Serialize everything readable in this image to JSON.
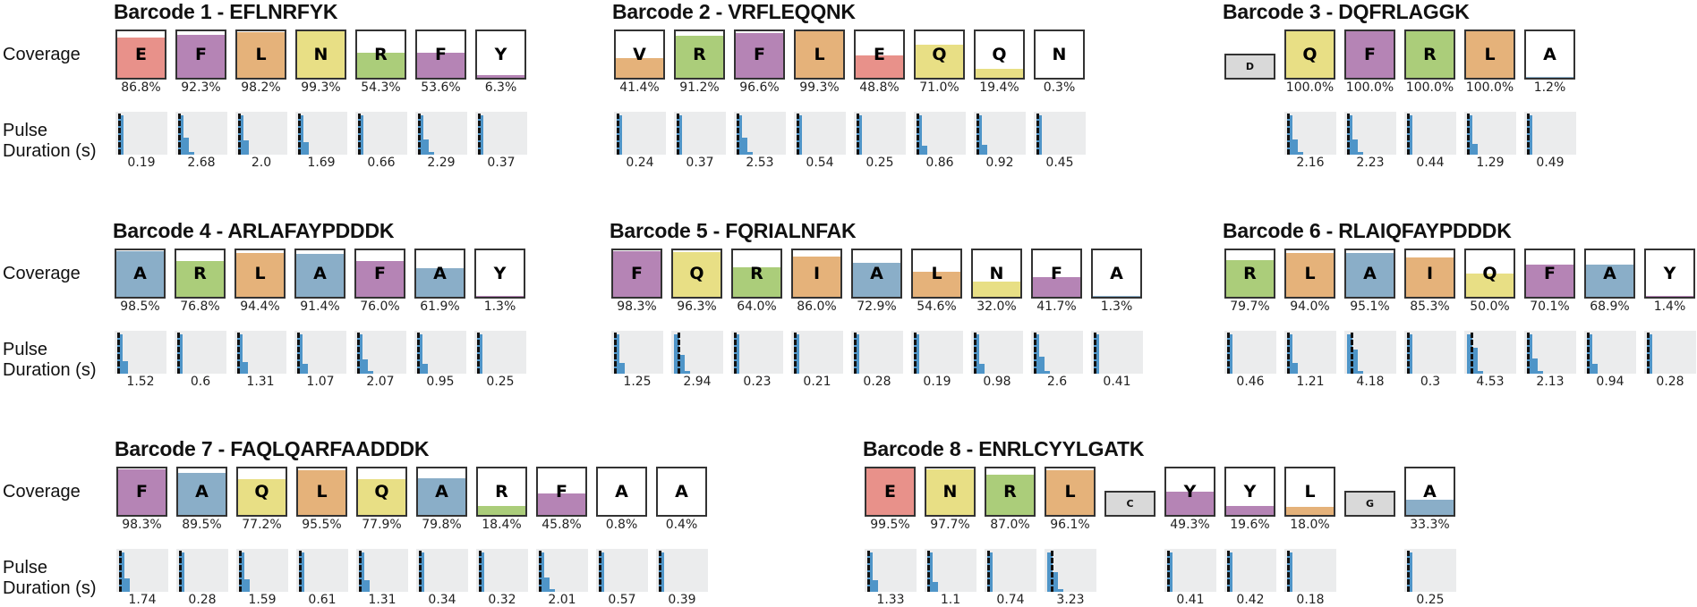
{
  "row_labels": {
    "coverage": "Coverage",
    "pulse_line1": "Pulse",
    "pulse_line2": "Duration (s)"
  },
  "colors": {
    "E": "#e8918a",
    "F": "#b584b5",
    "Y": "#b584b5",
    "L": "#e5b27a",
    "I": "#e5b27a",
    "V": "#e5b27a",
    "N": "#e8df85",
    "Q": "#e8df85",
    "R": "#abcd7a",
    "A": "#8aaec8",
    "missing": "#d9d9d9",
    "histogram": "#4f95c8"
  },
  "chart_data": [
    {
      "type": "bar",
      "title": "Barcode 1 - EFLNRFYK",
      "residues": [
        {
          "letter": "E",
          "coverage": 86.8,
          "coverage_label": "86.8%",
          "pulse": "0.19"
        },
        {
          "letter": "F",
          "coverage": 92.3,
          "coverage_label": "92.3%",
          "pulse": "2.68"
        },
        {
          "letter": "L",
          "coverage": 98.2,
          "coverage_label": "98.2%",
          "pulse": "2.0"
        },
        {
          "letter": "N",
          "coverage": 99.3,
          "coverage_label": "99.3%",
          "pulse": "1.69"
        },
        {
          "letter": "R",
          "coverage": 54.3,
          "coverage_label": "54.3%",
          "pulse": "0.66"
        },
        {
          "letter": "F",
          "coverage": 53.6,
          "coverage_label": "53.6%",
          "pulse": "2.29"
        },
        {
          "letter": "Y",
          "coverage": 6.3,
          "coverage_label": "6.3%",
          "pulse": "0.37"
        }
      ]
    },
    {
      "type": "bar",
      "title": "Barcode 2 - VRFLEQQNK",
      "residues": [
        {
          "letter": "V",
          "coverage": 41.4,
          "coverage_label": "41.4%",
          "pulse": "0.24"
        },
        {
          "letter": "R",
          "coverage": 91.2,
          "coverage_label": "91.2%",
          "pulse": "0.37"
        },
        {
          "letter": "F",
          "coverage": 96.6,
          "coverage_label": "96.6%",
          "pulse": "2.53"
        },
        {
          "letter": "L",
          "coverage": 99.3,
          "coverage_label": "99.3%",
          "pulse": "0.54"
        },
        {
          "letter": "E",
          "coverage": 48.8,
          "coverage_label": "48.8%",
          "pulse": "0.25"
        },
        {
          "letter": "Q",
          "coverage": 71.0,
          "coverage_label": "71.0%",
          "pulse": "0.86"
        },
        {
          "letter": "Q",
          "coverage": 19.4,
          "coverage_label": "19.4%",
          "pulse": "0.92"
        },
        {
          "letter": "N",
          "coverage": 0.3,
          "coverage_label": "0.3%",
          "pulse": "0.45"
        }
      ]
    },
    {
      "type": "bar",
      "title": "Barcode 3 - DQFRLAGGK",
      "residues": [
        {
          "letter": "D",
          "missing": true
        },
        {
          "letter": "Q",
          "coverage": 100.0,
          "coverage_label": "100.0%",
          "pulse": "2.16"
        },
        {
          "letter": "F",
          "coverage": 100.0,
          "coverage_label": "100.0%",
          "pulse": "2.23"
        },
        {
          "letter": "R",
          "coverage": 100.0,
          "coverage_label": "100.0%",
          "pulse": "0.44"
        },
        {
          "letter": "L",
          "coverage": 100.0,
          "coverage_label": "100.0%",
          "pulse": "1.29"
        },
        {
          "letter": "A",
          "coverage": 1.2,
          "coverage_label": "1.2%",
          "pulse": "0.49"
        }
      ]
    },
    {
      "type": "bar",
      "title": "Barcode 4 - ARLAFAYPDDDK",
      "residues": [
        {
          "letter": "A",
          "coverage": 98.5,
          "coverage_label": "98.5%",
          "pulse": "1.52"
        },
        {
          "letter": "R",
          "coverage": 76.8,
          "coverage_label": "76.8%",
          "pulse": "0.6"
        },
        {
          "letter": "L",
          "coverage": 94.4,
          "coverage_label": "94.4%",
          "pulse": "1.31"
        },
        {
          "letter": "A",
          "coverage": 91.4,
          "coverage_label": "91.4%",
          "pulse": "1.07"
        },
        {
          "letter": "F",
          "coverage": 76.0,
          "coverage_label": "76.0%",
          "pulse": "2.07"
        },
        {
          "letter": "A",
          "coverage": 61.9,
          "coverage_label": "61.9%",
          "pulse": "0.95"
        },
        {
          "letter": "Y",
          "coverage": 1.3,
          "coverage_label": "1.3%",
          "pulse": "0.25"
        }
      ]
    },
    {
      "type": "bar",
      "title": "Barcode 5 - FQRIALNFAK",
      "residues": [
        {
          "letter": "F",
          "coverage": 98.3,
          "coverage_label": "98.3%",
          "pulse": "1.25"
        },
        {
          "letter": "Q",
          "coverage": 96.3,
          "coverage_label": "96.3%",
          "pulse": "2.94"
        },
        {
          "letter": "R",
          "coverage": 64.0,
          "coverage_label": "64.0%",
          "pulse": "0.23"
        },
        {
          "letter": "I",
          "coverage": 86.0,
          "coverage_label": "86.0%",
          "pulse": "0.21"
        },
        {
          "letter": "A",
          "coverage": 72.9,
          "coverage_label": "72.9%",
          "pulse": "0.28"
        },
        {
          "letter": "L",
          "coverage": 54.6,
          "coverage_label": "54.6%",
          "pulse": "0.19"
        },
        {
          "letter": "N",
          "coverage": 32.0,
          "coverage_label": "32.0%",
          "pulse": "0.98"
        },
        {
          "letter": "F",
          "coverage": 41.7,
          "coverage_label": "41.7%",
          "pulse": "2.6"
        },
        {
          "letter": "A",
          "coverage": 1.3,
          "coverage_label": "1.3%",
          "pulse": "0.41"
        }
      ]
    },
    {
      "type": "bar",
      "title": "Barcode 6 - RLAIQFAYPDDDK",
      "residues": [
        {
          "letter": "R",
          "coverage": 79.7,
          "coverage_label": "79.7%",
          "pulse": "0.46"
        },
        {
          "letter": "L",
          "coverage": 94.0,
          "coverage_label": "94.0%",
          "pulse": "1.21"
        },
        {
          "letter": "A",
          "coverage": 95.1,
          "coverage_label": "95.1%",
          "pulse": "4.18"
        },
        {
          "letter": "I",
          "coverage": 85.3,
          "coverage_label": "85.3%",
          "pulse": "0.3"
        },
        {
          "letter": "Q",
          "coverage": 50.0,
          "coverage_label": "50.0%",
          "pulse": "4.53"
        },
        {
          "letter": "F",
          "coverage": 70.1,
          "coverage_label": "70.1%",
          "pulse": "2.13"
        },
        {
          "letter": "A",
          "coverage": 68.9,
          "coverage_label": "68.9%",
          "pulse": "0.94"
        },
        {
          "letter": "Y",
          "coverage": 1.4,
          "coverage_label": "1.4%",
          "pulse": "0.28"
        }
      ]
    },
    {
      "type": "bar",
      "title": "Barcode 7 - FAQLQARFAADDDK",
      "residues": [
        {
          "letter": "F",
          "coverage": 98.3,
          "coverage_label": "98.3%",
          "pulse": "1.74"
        },
        {
          "letter": "A",
          "coverage": 89.5,
          "coverage_label": "89.5%",
          "pulse": "0.28"
        },
        {
          "letter": "Q",
          "coverage": 77.2,
          "coverage_label": "77.2%",
          "pulse": "1.59"
        },
        {
          "letter": "L",
          "coverage": 95.5,
          "coverage_label": "95.5%",
          "pulse": "0.61"
        },
        {
          "letter": "Q",
          "coverage": 77.9,
          "coverage_label": "77.9%",
          "pulse": "1.31"
        },
        {
          "letter": "A",
          "coverage": 79.8,
          "coverage_label": "79.8%",
          "pulse": "0.34"
        },
        {
          "letter": "R",
          "coverage": 18.4,
          "coverage_label": "18.4%",
          "pulse": "0.32"
        },
        {
          "letter": "F",
          "coverage": 45.8,
          "coverage_label": "45.8%",
          "pulse": "2.01"
        },
        {
          "letter": "A",
          "coverage": 0.8,
          "coverage_label": "0.8%",
          "pulse": "0.57"
        },
        {
          "letter": "A",
          "coverage": 0.4,
          "coverage_label": "0.4%",
          "pulse": "0.39"
        }
      ]
    },
    {
      "type": "bar",
      "title": "Barcode 8 - ENRLCYYLGATK",
      "residues": [
        {
          "letter": "E",
          "coverage": 99.5,
          "coverage_label": "99.5%",
          "pulse": "1.33"
        },
        {
          "letter": "N",
          "coverage": 97.7,
          "coverage_label": "97.7%",
          "pulse": "1.1"
        },
        {
          "letter": "R",
          "coverage": 87.0,
          "coverage_label": "87.0%",
          "pulse": "0.74"
        },
        {
          "letter": "L",
          "coverage": 96.1,
          "coverage_label": "96.1%",
          "pulse": "3.23"
        },
        {
          "letter": "C",
          "missing": true
        },
        {
          "letter": "Y",
          "coverage": 49.3,
          "coverage_label": "49.3%",
          "pulse": "0.41"
        },
        {
          "letter": "Y",
          "coverage": 19.6,
          "coverage_label": "19.6%",
          "pulse": "0.42"
        },
        {
          "letter": "L",
          "coverage": 18.0,
          "coverage_label": "18.0%",
          "pulse": "0.18"
        },
        {
          "letter": "G",
          "missing": true
        },
        {
          "letter": "A",
          "coverage": 33.3,
          "coverage_label": "33.3%",
          "pulse": "0.25"
        }
      ]
    }
  ]
}
